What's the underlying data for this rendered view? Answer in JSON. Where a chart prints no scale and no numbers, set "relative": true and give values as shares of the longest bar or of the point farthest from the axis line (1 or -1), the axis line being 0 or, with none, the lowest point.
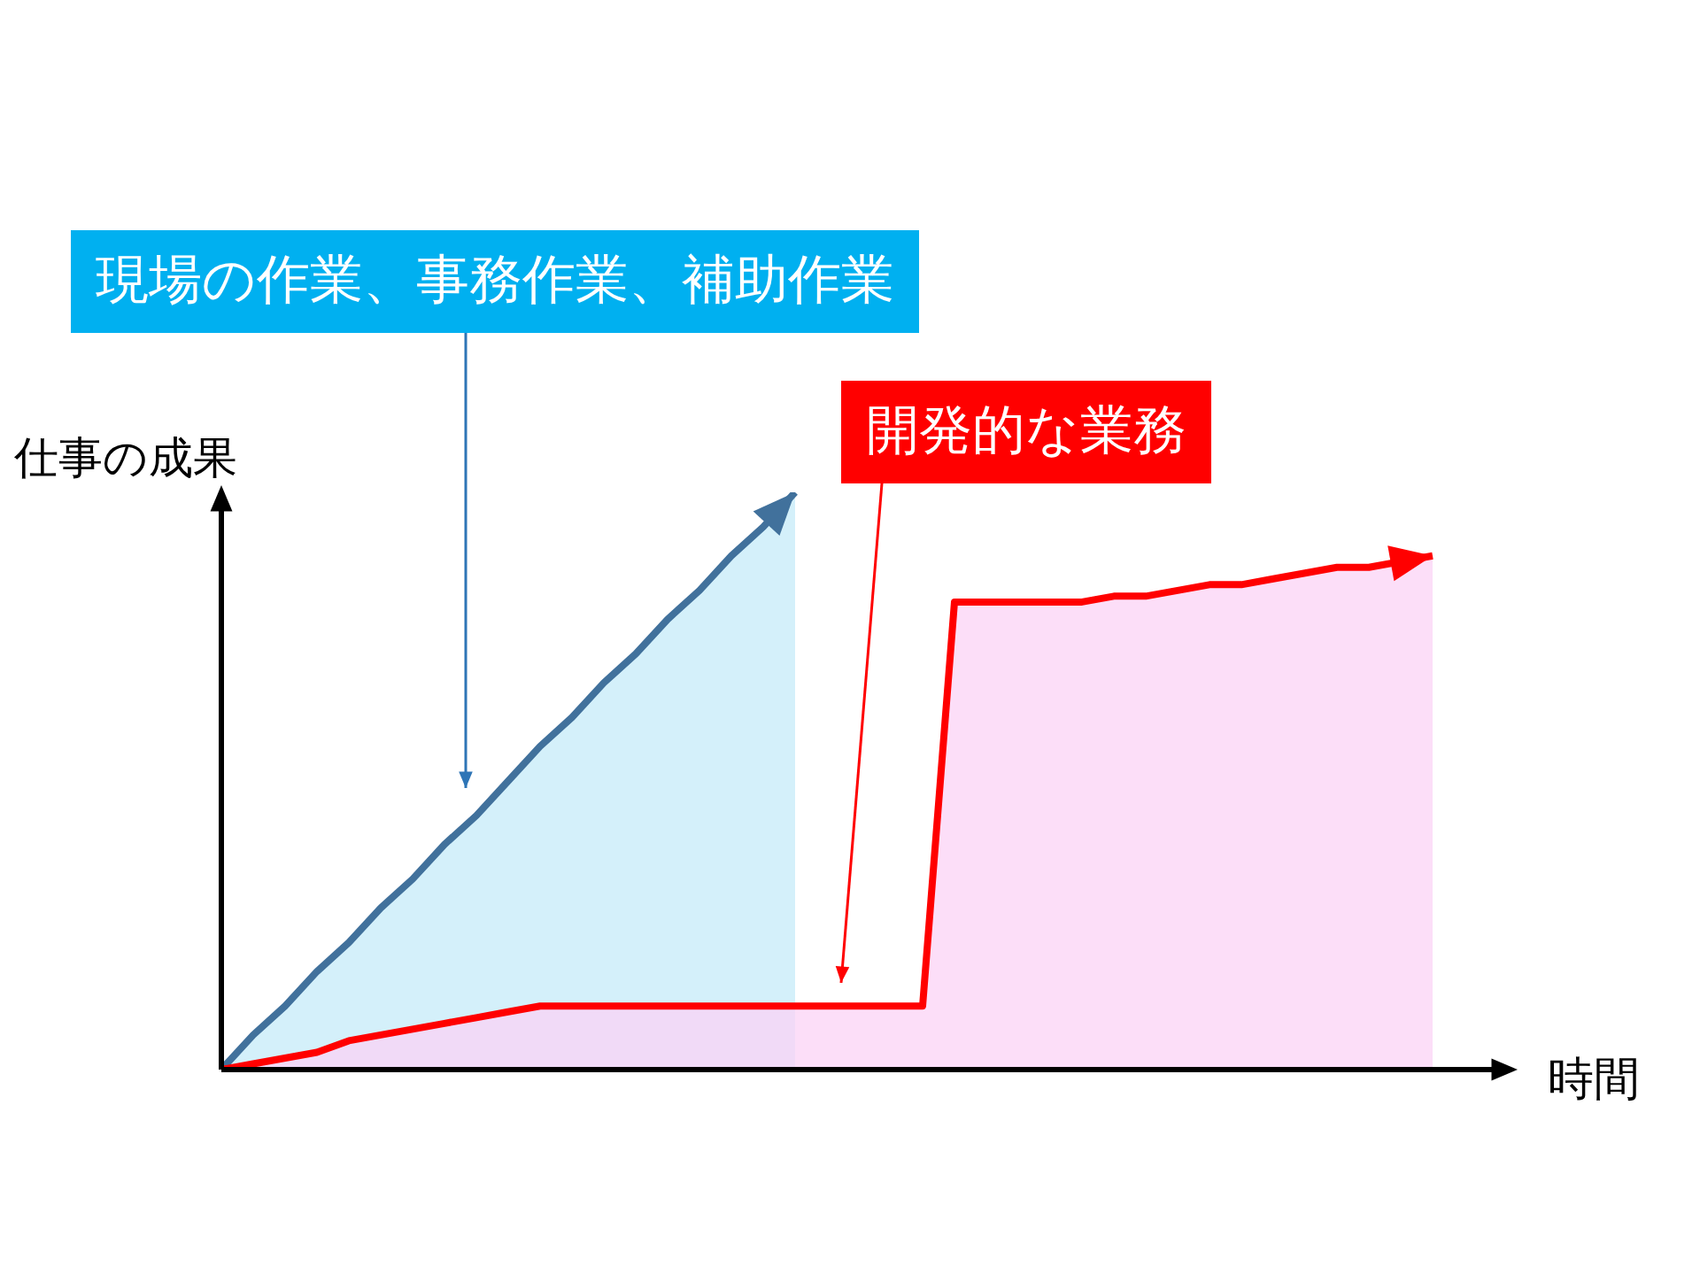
{
  "chart_data": {
    "type": "area",
    "relative": true,
    "xlabel": "時間",
    "ylabel": "仕事の成果",
    "categories": [
      null,
      null,
      null,
      null,
      null,
      null,
      null,
      null,
      null,
      null,
      null,
      null,
      null,
      null,
      null,
      null,
      null,
      null,
      null,
      null,
      null,
      null,
      null,
      null,
      null,
      null,
      null,
      null,
      null,
      null,
      null,
      null,
      null,
      null,
      null,
      null,
      null,
      null,
      null,
      null,
      null
    ],
    "series": [
      {
        "color": "#41719c",
        "values": [
          0,
          0.06,
          0.11,
          0.17,
          0.22,
          0.28,
          0.33,
          0.39,
          0.44,
          0.5,
          0.56,
          0.61,
          0.67,
          0.72,
          0.78,
          0.83,
          0.89,
          0.94,
          1,
          null,
          null,
          null,
          null,
          null,
          null,
          null,
          null,
          null,
          null,
          null,
          null,
          null,
          null,
          null,
          null,
          null,
          null,
          null,
          null,
          null,
          null
        ]
      },
      {
        "color": "#ff0000",
        "values": [
          0,
          0.01,
          0.02,
          0.03,
          0.05,
          0.06,
          0.07,
          0.08,
          0.09,
          0.1,
          0.11,
          0.11,
          0.11,
          0.11,
          0.11,
          0.11,
          0.11,
          0.11,
          0.11,
          0.11,
          0.11,
          0.11,
          0.11,
          0.81,
          0.81,
          0.81,
          0.81,
          0.81,
          0.82,
          0.82,
          0.83,
          0.84,
          0.84,
          0.85,
          0.86,
          0.87,
          0.87,
          0.88,
          0.89,
          null,
          null
        ]
      }
    ],
    "annotations": [
      "現場の作業、事務作業、補助作業",
      "開発的な業務"
    ]
  }
}
